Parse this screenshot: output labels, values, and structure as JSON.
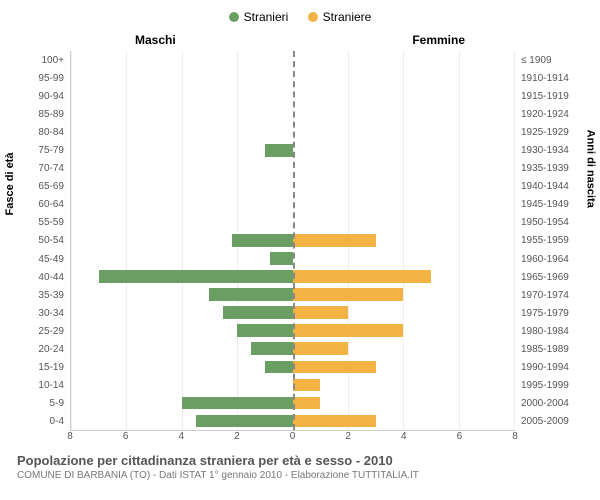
{
  "chart": {
    "type": "population-pyramid",
    "legend": {
      "male": {
        "label": "Stranieri",
        "color": "#6a9e63"
      },
      "female": {
        "label": "Straniere",
        "color": "#f3b344"
      }
    },
    "axis_titles": {
      "left": "Maschi",
      "right": "Femmine"
    },
    "y_label_left": "Fasce di età",
    "y_label_right": "Anni di nascita",
    "x_max": 8,
    "x_ticks_left": [
      8,
      6,
      4,
      2,
      0
    ],
    "x_ticks_right": [
      0,
      2,
      4,
      6,
      8
    ],
    "grid_step": 2,
    "grid_color": "#eeeeee",
    "center_line_color": "#888800",
    "background": "#ffffff",
    "rows": [
      {
        "age": "100+",
        "birth": "≤ 1909",
        "m": 0,
        "f": 0
      },
      {
        "age": "95-99",
        "birth": "1910-1914",
        "m": 0,
        "f": 0
      },
      {
        "age": "90-94",
        "birth": "1915-1919",
        "m": 0,
        "f": 0
      },
      {
        "age": "85-89",
        "birth": "1920-1924",
        "m": 0,
        "f": 0
      },
      {
        "age": "80-84",
        "birth": "1925-1929",
        "m": 0,
        "f": 0
      },
      {
        "age": "75-79",
        "birth": "1930-1934",
        "m": 1,
        "f": 0
      },
      {
        "age": "70-74",
        "birth": "1935-1939",
        "m": 0,
        "f": 0
      },
      {
        "age": "65-69",
        "birth": "1940-1944",
        "m": 0,
        "f": 0
      },
      {
        "age": "60-64",
        "birth": "1945-1949",
        "m": 0,
        "f": 0
      },
      {
        "age": "55-59",
        "birth": "1950-1954",
        "m": 0,
        "f": 0
      },
      {
        "age": "50-54",
        "birth": "1955-1959",
        "m": 2.2,
        "f": 3
      },
      {
        "age": "45-49",
        "birth": "1960-1964",
        "m": 0.8,
        "f": 0
      },
      {
        "age": "40-44",
        "birth": "1965-1969",
        "m": 7,
        "f": 5
      },
      {
        "age": "35-39",
        "birth": "1970-1974",
        "m": 3,
        "f": 4
      },
      {
        "age": "30-34",
        "birth": "1975-1979",
        "m": 2.5,
        "f": 2
      },
      {
        "age": "25-29",
        "birth": "1980-1984",
        "m": 2,
        "f": 4
      },
      {
        "age": "20-24",
        "birth": "1985-1989",
        "m": 1.5,
        "f": 2
      },
      {
        "age": "15-19",
        "birth": "1990-1994",
        "m": 1,
        "f": 3
      },
      {
        "age": "10-14",
        "birth": "1995-1999",
        "m": 0,
        "f": 1
      },
      {
        "age": "5-9",
        "birth": "2000-2004",
        "m": 4,
        "f": 1
      },
      {
        "age": "0-4",
        "birth": "2005-2009",
        "m": 3.5,
        "f": 3
      }
    ]
  },
  "footer": {
    "title": "Popolazione per cittadinanza straniera per età e sesso - 2010",
    "subtitle": "COMUNE DI BARBANIA (TO) - Dati ISTAT 1° gennaio 2010 - Elaborazione TUTTITALIA.IT"
  }
}
